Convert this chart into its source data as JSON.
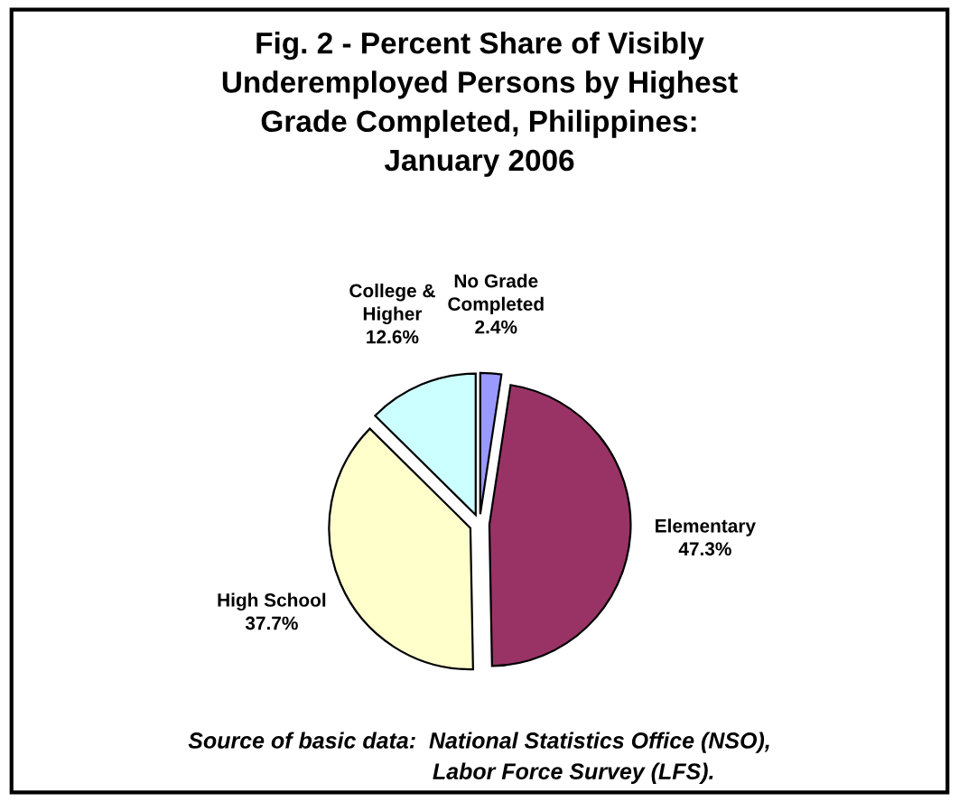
{
  "chart_data": {
    "type": "pie",
    "title": "Fig. 2 - Percent Share of Visibly\nUnderemployed Persons by Highest\nGrade Completed, Philippines:\nJanuary 2006",
    "categories": [
      "No Grade\nCompleted",
      "Elementary",
      "High School",
      "College &\nHigher"
    ],
    "values": [
      2.4,
      47.3,
      37.7,
      12.6
    ],
    "value_labels": [
      "2.4%",
      "47.3%",
      "37.7%",
      "12.6%"
    ],
    "colors": [
      "#9999ff",
      "#993366",
      "#ffffcc",
      "#ccffff"
    ],
    "annotations": [
      "Source of basic data:  National Statistics Office (NSO),\n                              Labor Force Survey (LFS)."
    ]
  }
}
